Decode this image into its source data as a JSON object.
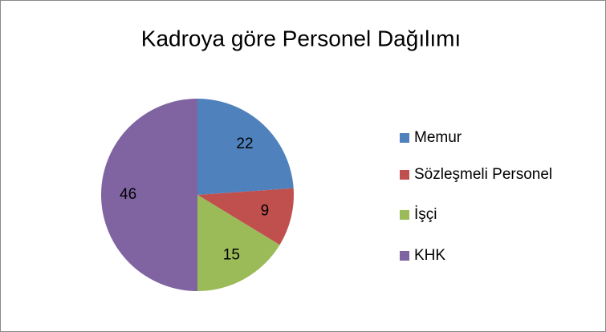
{
  "chart_data": {
    "type": "pie",
    "title": "Kadroya göre Personel Dağılımı",
    "categories": [
      "Memur",
      "Sözleşmeli Personel",
      "İşçi",
      "KHK"
    ],
    "values": [
      22,
      9,
      15,
      46
    ],
    "colors": [
      "#4f81bd",
      "#c0504d",
      "#9bbb59",
      "#8064a2"
    ],
    "legend": "right"
  }
}
